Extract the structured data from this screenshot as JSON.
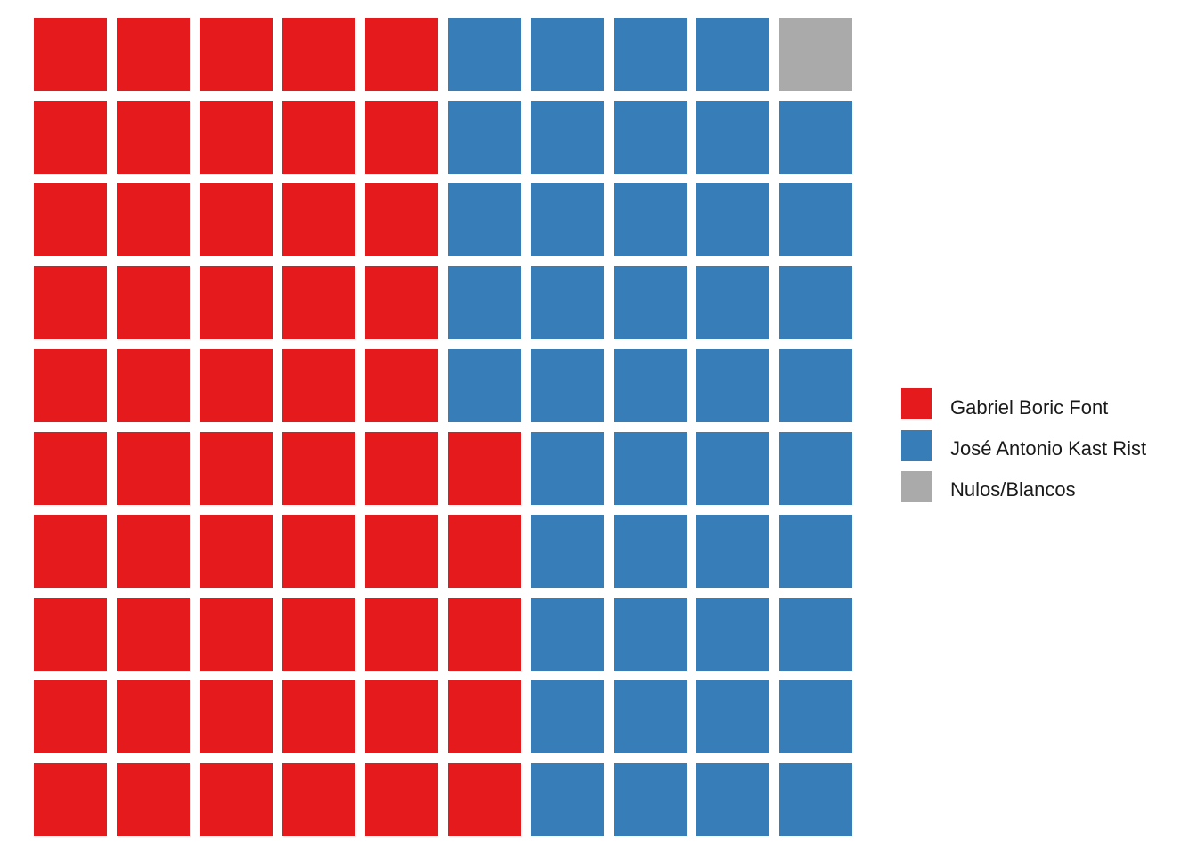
{
  "chart_data": {
    "type": "waffle",
    "grid": {
      "rows": 10,
      "cols": 10,
      "fill_order": "column-major, bottom-to-top"
    },
    "series": [
      {
        "name": "Gabriel Boric Font",
        "value": 55,
        "color": "#e41a1c"
      },
      {
        "name": "José Antonio Kast Rist",
        "value": 44,
        "color": "#377eb8"
      },
      {
        "name": "Nulos/Blancos",
        "value": 1,
        "color": "#aaaaaa"
      }
    ],
    "legend_position": "right"
  }
}
